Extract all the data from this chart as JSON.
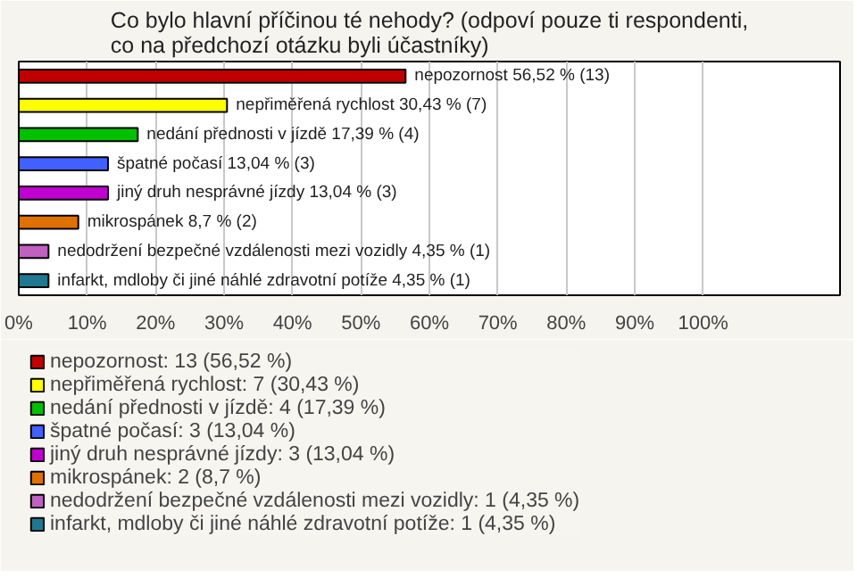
{
  "chart_data": {
    "type": "bar",
    "orientation": "horizontal",
    "title": "Co bylo hlavní příčinou té nehody? (odpoví pouze ti respondenti, co na předchozí otázku byli účastníky)",
    "categories": [
      null,
      null,
      null,
      null,
      null,
      null,
      null,
      null
    ],
    "series": [
      {
        "name": "nepozornost: 13 (56,52 %)",
        "color": "#c00000",
        "values": [
          56.52,
          null,
          null,
          null,
          null,
          null,
          null,
          null
        ],
        "value_labels": [
          "nepozornost 56,52 % (13)",
          null,
          null,
          null,
          null,
          null,
          null,
          null
        ]
      },
      {
        "name": "nepřiměřená rychlost: 7 (30,43 %)",
        "color": "#ffff00",
        "values": [
          null,
          30.43,
          null,
          null,
          null,
          null,
          null,
          null
        ],
        "value_labels": [
          null,
          "nepřiměřená rychlost 30,43 % (7)",
          null,
          null,
          null,
          null,
          null,
          null
        ]
      },
      {
        "name": "nedání přednosti v jízdě: 4 (17,39 %)",
        "color": "#00c000",
        "values": [
          null,
          null,
          17.39,
          null,
          null,
          null,
          null,
          null
        ],
        "value_labels": [
          null,
          null,
          "nedání přednosti v jízdě 17,39 % (4)",
          null,
          null,
          null,
          null,
          null
        ]
      },
      {
        "name": "špatné počasí: 3 (13,04 %)",
        "color": "#4060ff",
        "values": [
          null,
          null,
          null,
          13.04,
          null,
          null,
          null,
          null
        ],
        "value_labels": [
          null,
          null,
          null,
          "špatné počasí 13,04 % (3)",
          null,
          null,
          null,
          null
        ]
      },
      {
        "name": "jiný druh nesprávné jízdy: 3 (13,04 %)",
        "color": "#c000d0",
        "values": [
          null,
          null,
          null,
          null,
          13.04,
          null,
          null,
          null
        ],
        "value_labels": [
          null,
          null,
          null,
          null,
          "jiný druh nesprávné jízdy 13,04 % (3)",
          null,
          null,
          null
        ]
      },
      {
        "name": "mikrospánek: 2 (8,7 %)",
        "color": "#e07000",
        "values": [
          null,
          null,
          null,
          null,
          null,
          8.7,
          null,
          null
        ],
        "value_labels": [
          null,
          null,
          null,
          null,
          null,
          "mikrospánek 8,7 % (2)",
          null,
          null
        ]
      },
      {
        "name": "nedodržení bezpečné vzdálenosti mezi vozidly: 1 (4,35 %)",
        "color": "#c060c0",
        "values": [
          null,
          null,
          null,
          null,
          null,
          null,
          4.35,
          null
        ],
        "value_labels": [
          null,
          null,
          null,
          null,
          null,
          null,
          "nedodržení bezpečné vzdálenosti mezi vozidly 4,35 % (1)",
          null
        ]
      },
      {
        "name": "infarkt, mdloby či jiné náhlé zdravotní potíže: 1 (4,35 %)",
        "color": "#207890",
        "values": [
          null,
          null,
          null,
          null,
          null,
          null,
          null,
          4.35
        ],
        "value_labels": [
          null,
          null,
          null,
          null,
          null,
          null,
          null,
          "infarkt, mdloby či jiné náhlé zdravotní potíže 4,35 % (1)"
        ]
      }
    ],
    "xlim": [
      0,
      120
    ],
    "xticks": [
      {
        "value": 0,
        "label": "0%"
      },
      {
        "value": 10,
        "label": "10%"
      },
      {
        "value": 20,
        "label": "20%"
      },
      {
        "value": 30,
        "label": "30%"
      },
      {
        "value": 40,
        "label": "40%"
      },
      {
        "value": 50,
        "label": "50%"
      },
      {
        "value": 60,
        "label": "60%"
      },
      {
        "value": 70,
        "label": "70%"
      },
      {
        "value": 80,
        "label": "80%"
      },
      {
        "value": 90,
        "label": "90%"
      },
      {
        "value": 100,
        "label": "100%"
      }
    ],
    "grid": "x",
    "legend": "bottom",
    "tick_labels": "x"
  }
}
